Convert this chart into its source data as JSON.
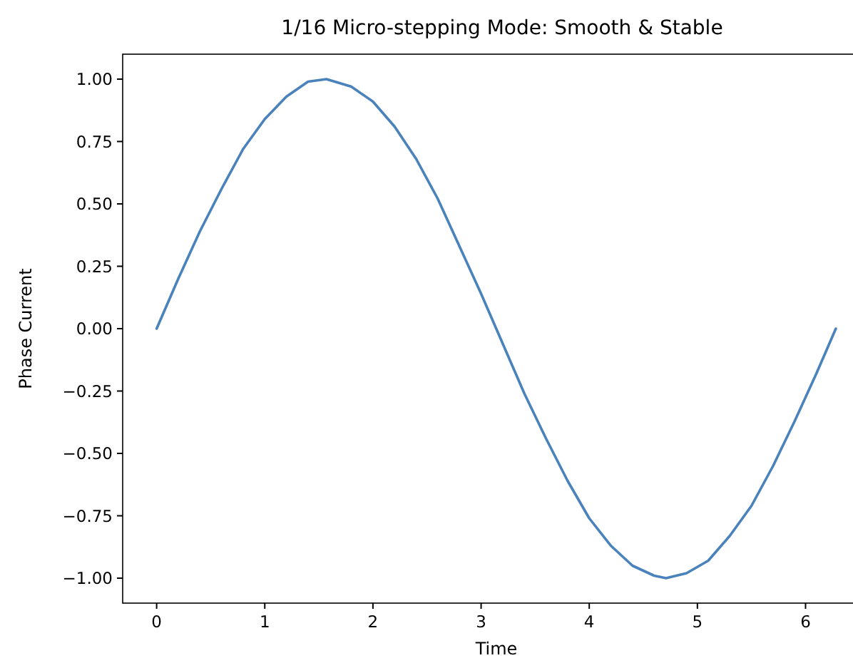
{
  "chart_data": {
    "type": "line",
    "title": "1/16 Micro-stepping Mode: Smooth & Stable",
    "xlabel": "Time",
    "ylabel": "Phase Current",
    "x": [
      0,
      0.2,
      0.4,
      0.6,
      0.8,
      1.0,
      1.2,
      1.4,
      1.57,
      1.8,
      2.0,
      2.2,
      2.4,
      2.6,
      2.8,
      3.0,
      3.2,
      3.4,
      3.6,
      3.8,
      4.0,
      4.2,
      4.4,
      4.6,
      4.71,
      4.9,
      5.1,
      5.3,
      5.5,
      5.7,
      5.9,
      6.1,
      6.28
    ],
    "series": [
      {
        "color": "#4a82bb",
        "values": [
          0,
          0.2,
          0.39,
          0.56,
          0.72,
          0.84,
          0.93,
          0.99,
          1.0,
          0.97,
          0.91,
          0.81,
          0.68,
          0.52,
          0.33,
          0.14,
          -0.06,
          -0.26,
          -0.44,
          -0.61,
          -0.76,
          -0.87,
          -0.95,
          -0.99,
          -1.0,
          -0.98,
          -0.93,
          -0.83,
          -0.71,
          -0.55,
          -0.37,
          -0.18,
          0
        ]
      }
    ],
    "xlim": [
      -0.314,
      6.597
    ],
    "ylim": [
      -1.1,
      1.1
    ],
    "xticks": [
      0,
      1,
      2,
      3,
      4,
      5,
      6
    ],
    "yticks": [
      {
        "value": -1,
        "label": "−1.00"
      },
      {
        "value": -0.75,
        "label": "−0.75"
      },
      {
        "value": -0.5,
        "label": "−0.50"
      },
      {
        "value": -0.25,
        "label": "−0.25"
      },
      {
        "value": 0,
        "label": "0.00"
      },
      {
        "value": 0.25,
        "label": "0.25"
      },
      {
        "value": 0.5,
        "label": "0.50"
      },
      {
        "value": 0.75,
        "label": "0.75"
      },
      {
        "value": 1,
        "label": "1.00"
      }
    ],
    "grid": false,
    "marker": "none",
    "line_style": "solid"
  }
}
